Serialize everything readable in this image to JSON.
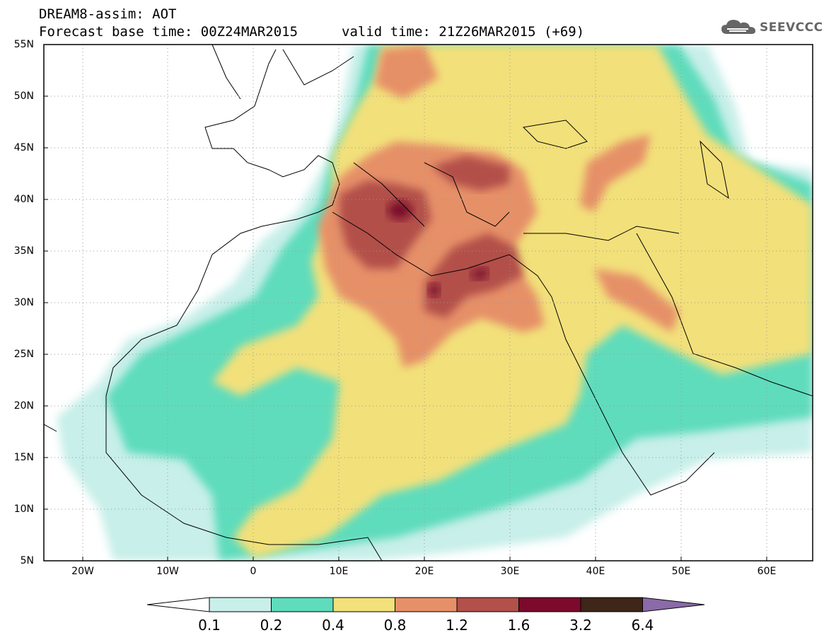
{
  "header": {
    "line1": "DREAM8-assim: AOT",
    "line2": "Forecast base time: 00Z24MAR2015",
    "valid": "valid time: 21Z26MAR2015 (+69)"
  },
  "logo": {
    "text": "SEEVCCC",
    "icon": "cloud-icon"
  },
  "map": {
    "lat_labels": [
      "55N",
      "50N",
      "45N",
      "40N",
      "35N",
      "30N",
      "25N",
      "20N",
      "15N",
      "10N",
      "5N"
    ],
    "lon_labels": [
      "20W",
      "10W",
      "0",
      "10E",
      "20E",
      "30E",
      "40E",
      "50E",
      "60E"
    ],
    "grid": "dotted"
  },
  "colorbar": {
    "levels": [
      "0.1",
      "0.2",
      "0.4",
      "0.8",
      "1.2",
      "1.6",
      "3.2",
      "6.4"
    ],
    "colors": [
      "#ffffff",
      "#c8efe9",
      "#5edcbc",
      "#f2e07a",
      "#e69068",
      "#b2504a",
      "#7b0a2c",
      "#3e2618",
      "#8a6aa8"
    ]
  },
  "legend_colors": {
    "c0": "#c8efe9",
    "c1": "#5edcbc",
    "c2": "#f2e07a",
    "c3": "#e69068",
    "c4": "#b2504a",
    "c5": "#7b0a2c",
    "c6": "#3e2618",
    "c7": "#8a6aa8"
  }
}
